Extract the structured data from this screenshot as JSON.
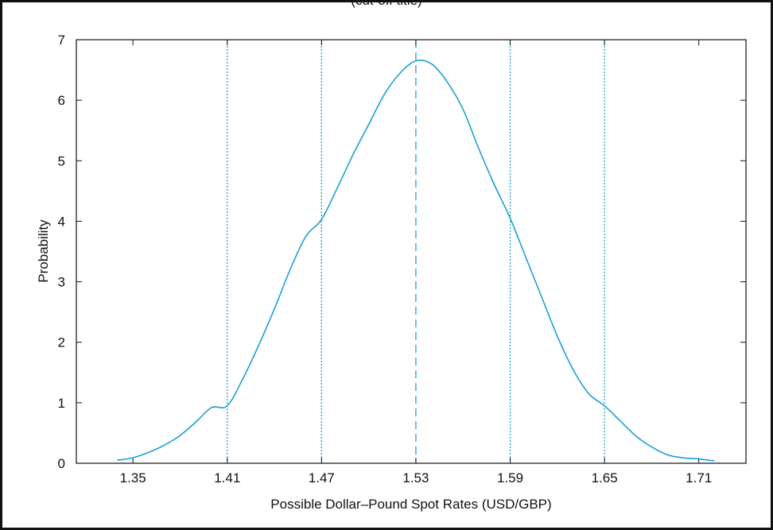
{
  "chart_data": {
    "type": "line",
    "title": "(cut-off title)",
    "xlabel": "Possible Dollar–Pound Spot Rates (USD/GBP)",
    "ylabel": "Probability",
    "xlim": [
      1.314,
      1.74
    ],
    "ylim": [
      0,
      7
    ],
    "xticks": [
      1.35,
      1.41,
      1.47,
      1.53,
      1.59,
      1.65,
      1.71
    ],
    "xtick_labels": [
      "1.35",
      "1.41",
      "1.47",
      "1.53",
      "1.59",
      "1.65",
      "1.71"
    ],
    "yticks": [
      0,
      1,
      2,
      3,
      4,
      5,
      6,
      7
    ],
    "ytick_labels": [
      "0",
      "1",
      "2",
      "3",
      "4",
      "5",
      "6",
      "7"
    ],
    "grid": false,
    "series": [
      {
        "color": "#1aa0d8",
        "style": "solid",
        "x": [
          1.34,
          1.35,
          1.36,
          1.37,
          1.38,
          1.39,
          1.4,
          1.41,
          1.42,
          1.43,
          1.44,
          1.45,
          1.46,
          1.47,
          1.48,
          1.49,
          1.5,
          1.51,
          1.52,
          1.53,
          1.54,
          1.55,
          1.56,
          1.57,
          1.58,
          1.59,
          1.6,
          1.61,
          1.62,
          1.63,
          1.64,
          1.65,
          1.66,
          1.67,
          1.68,
          1.69,
          1.7,
          1.71,
          1.72
        ],
        "y": [
          0.05,
          0.09,
          0.18,
          0.3,
          0.46,
          0.68,
          0.92,
          0.95,
          1.4,
          1.95,
          2.55,
          3.2,
          3.75,
          4.03,
          4.55,
          5.1,
          5.6,
          6.1,
          6.45,
          6.65,
          6.6,
          6.3,
          5.85,
          5.2,
          4.6,
          4.05,
          3.4,
          2.75,
          2.1,
          1.55,
          1.15,
          0.95,
          0.7,
          0.45,
          0.27,
          0.14,
          0.09,
          0.07,
          0.04
        ]
      }
    ],
    "reference_lines": [
      {
        "x": 1.41,
        "style": "dotted",
        "color": "#1aa0d8"
      },
      {
        "x": 1.47,
        "style": "dotted",
        "color": "#1aa0d8"
      },
      {
        "x": 1.53,
        "style": "dashed",
        "color": "#1aa0d8"
      },
      {
        "x": 1.59,
        "style": "dotted",
        "color": "#1aa0d8"
      },
      {
        "x": 1.65,
        "style": "dotted",
        "color": "#1aa0d8"
      }
    ]
  }
}
